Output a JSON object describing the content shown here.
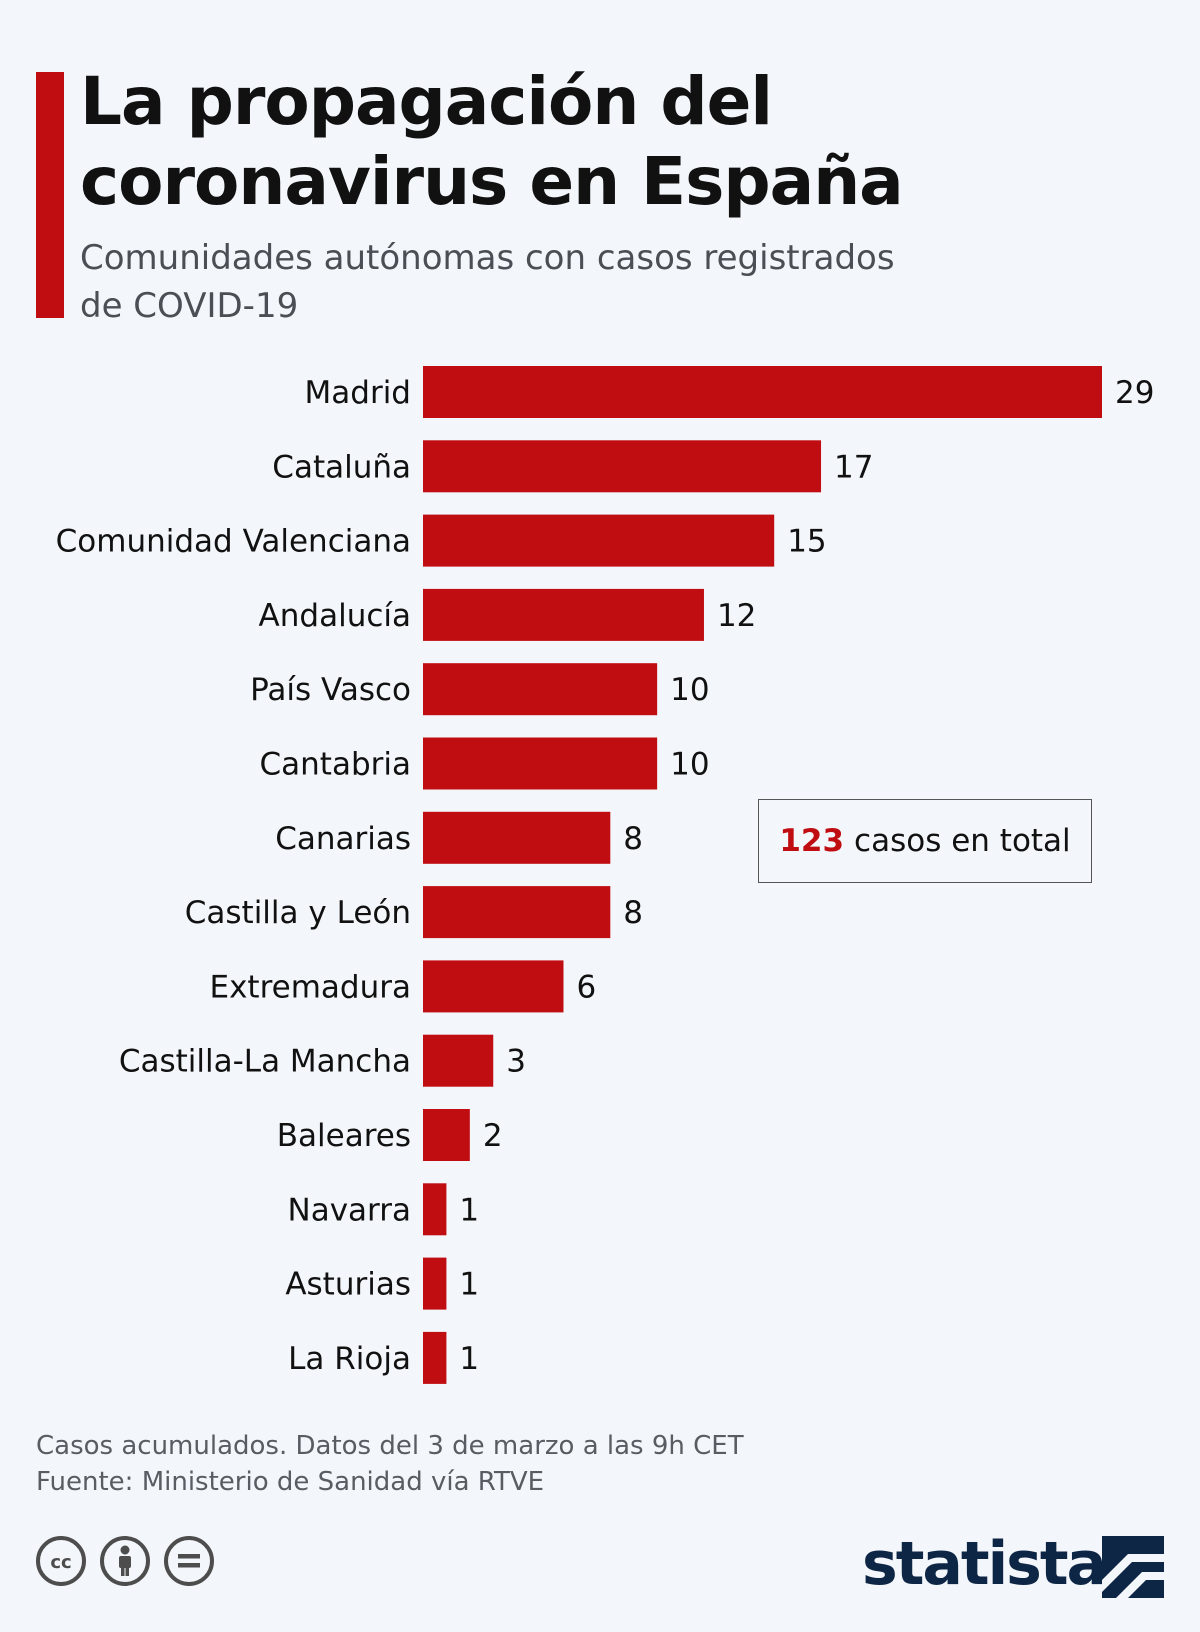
{
  "header": {
    "title_line1": "La propagación del",
    "title_line2": "coronavirus en España",
    "subtitle_line1": "Comunidades autónomas con casos registrados",
    "subtitle_line2": "de COVID-19"
  },
  "annotation": {
    "total_number": "123",
    "total_text": "casos en total"
  },
  "footer": {
    "note": "Casos acumulados. Datos del 3 de marzo a las 9h CET",
    "source": "Fuente: Ministerio de Sanidad vía RTVE",
    "brand": "statista"
  },
  "icons": [
    "cc-icon",
    "by-icon",
    "nd-icon",
    "statista-logo-icon"
  ],
  "colors": {
    "accent": "#c00d12",
    "background": "#f3f6fa",
    "brand": "#0e2645"
  },
  "chart_data": {
    "type": "bar",
    "orientation": "horizontal",
    "categories": [
      "Madrid",
      "Cataluña",
      "Comunidad Valenciana",
      "Andalucía",
      "País Vasco",
      "Cantabria",
      "Canarias",
      "Castilla y León",
      "Extremadura",
      "Castilla-La Mancha",
      "Baleares",
      "Navarra",
      "Asturias",
      "La Rioja"
    ],
    "values": [
      29,
      17,
      15,
      12,
      10,
      10,
      8,
      8,
      6,
      3,
      2,
      1,
      1,
      1
    ],
    "bar_color": "#c00d12",
    "xlim": [
      0,
      29
    ],
    "grid": false,
    "legend": "none"
  }
}
